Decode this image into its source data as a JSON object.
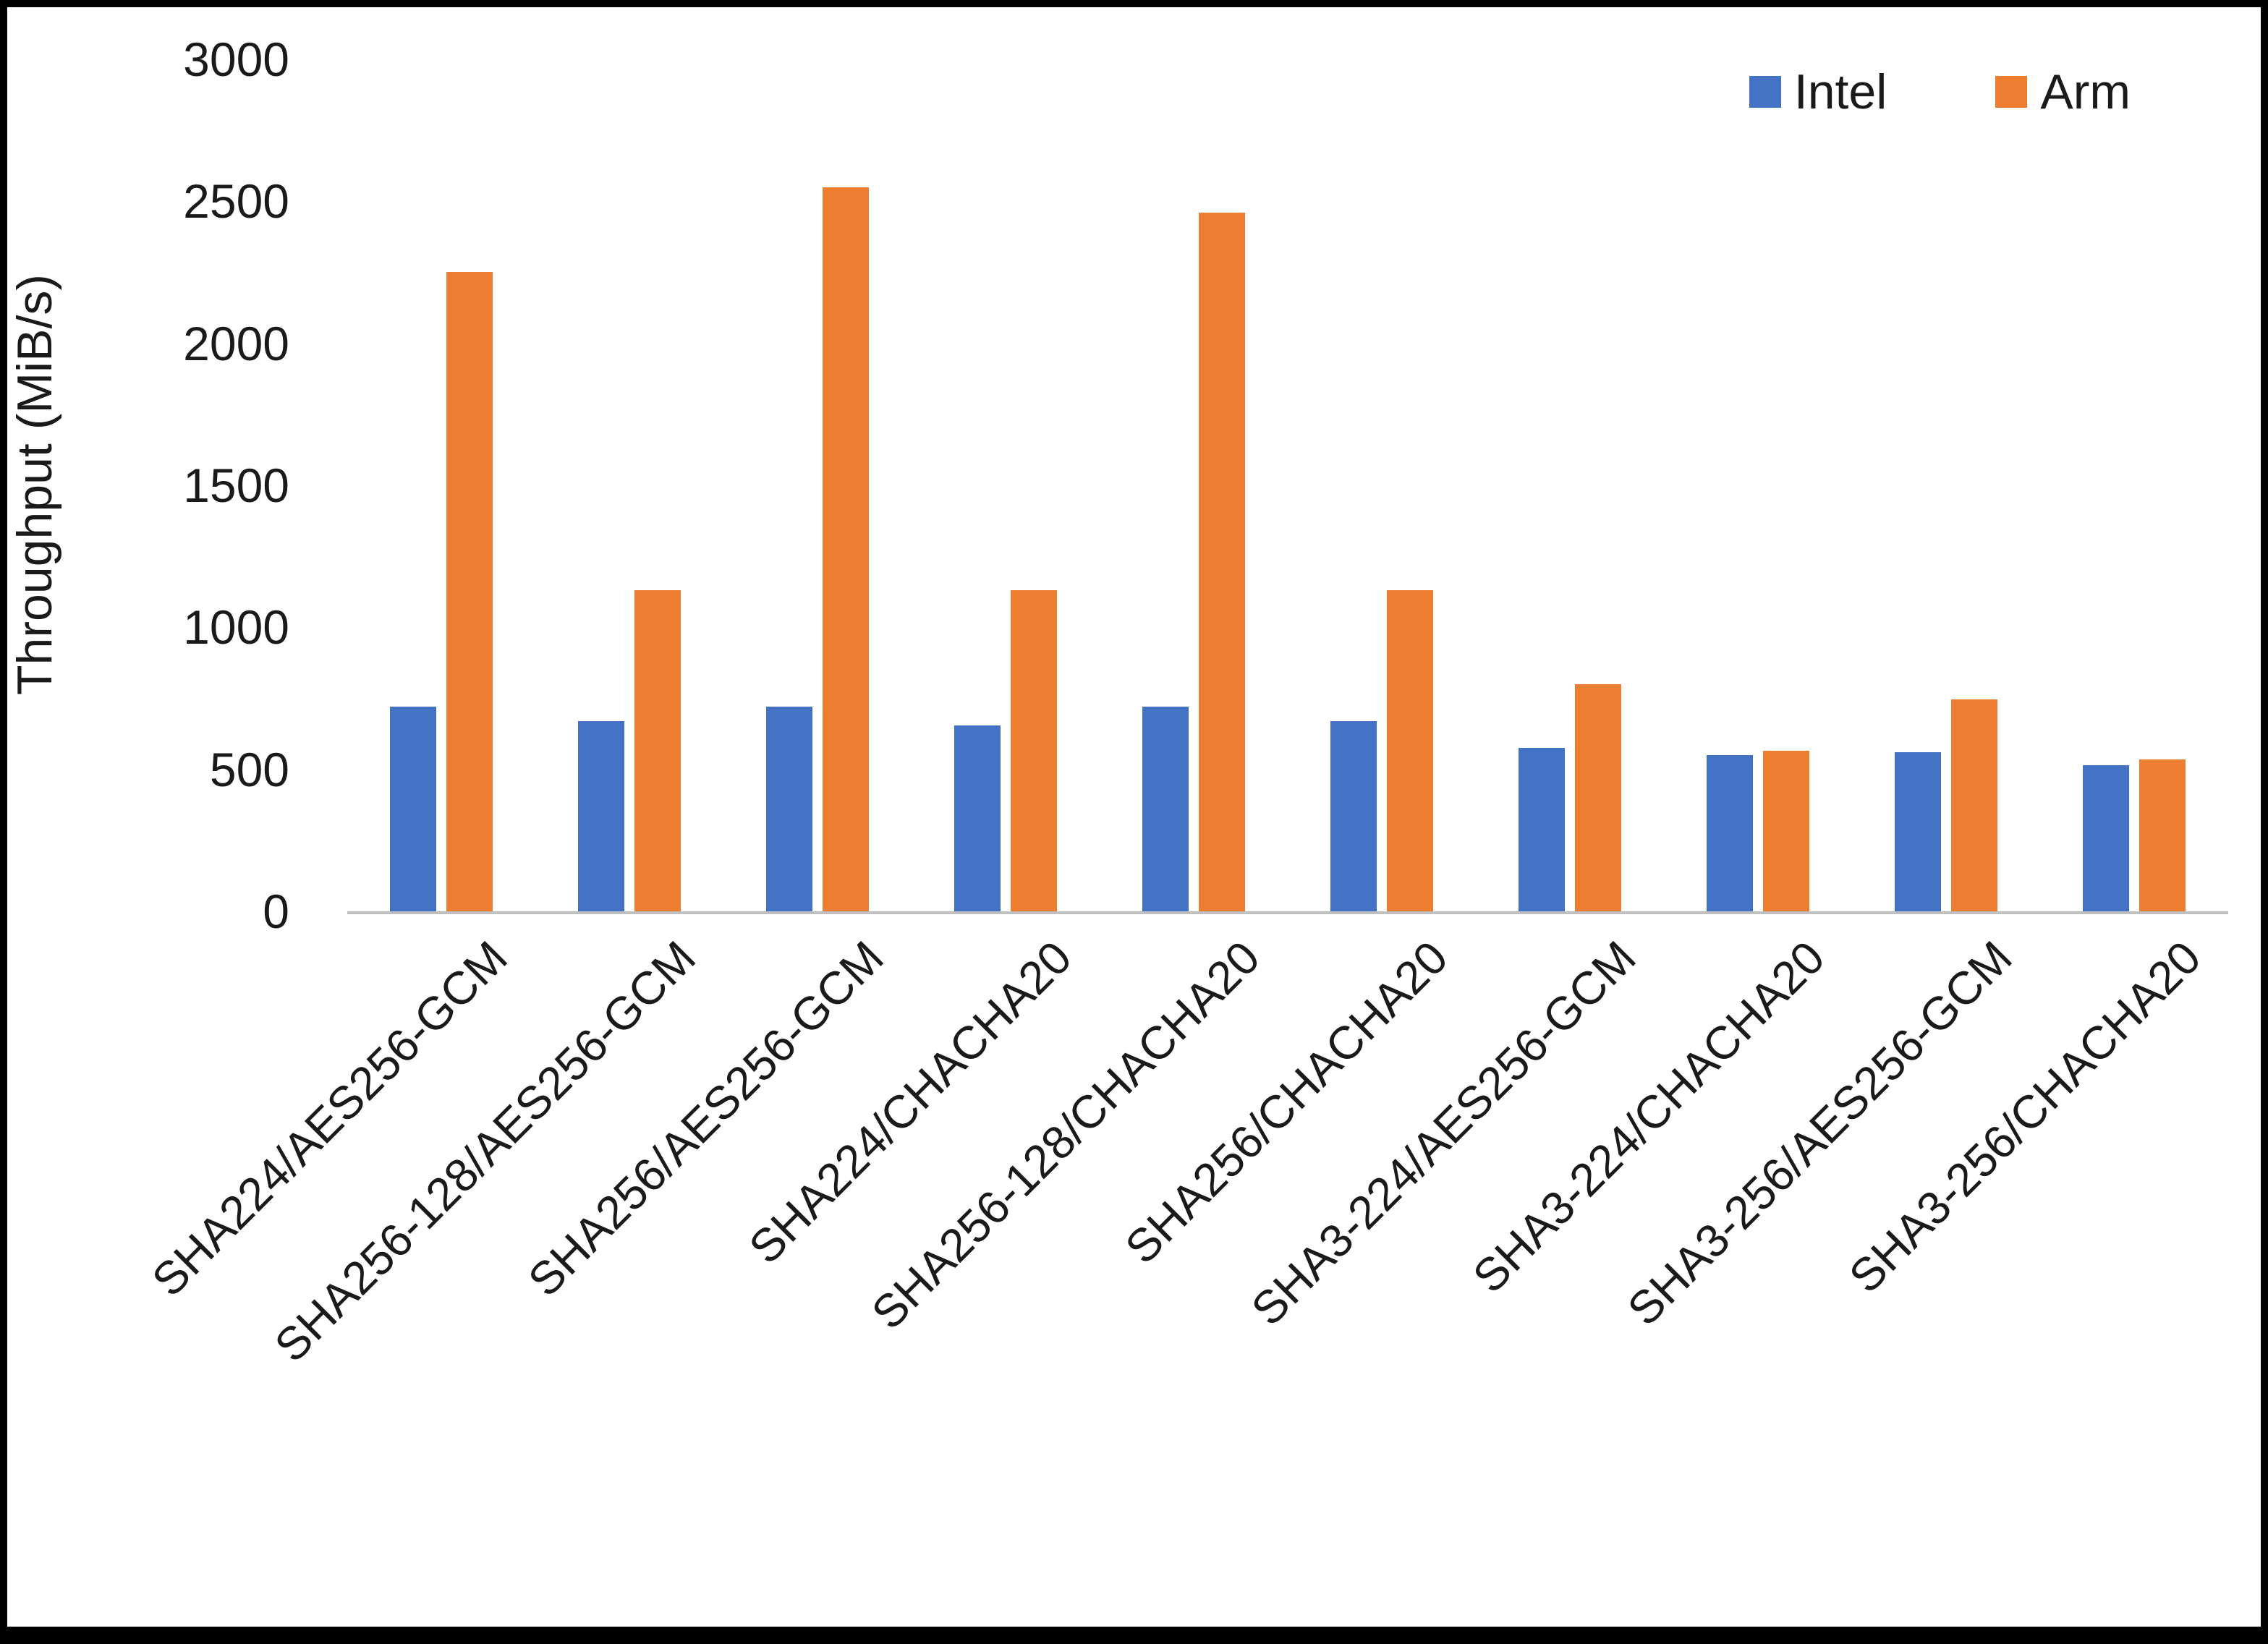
{
  "chart_data": {
    "type": "bar",
    "title": "",
    "xlabel": "",
    "ylabel": "Throughput (MiB/s)",
    "ylim": [
      0,
      3000
    ],
    "yticks": [
      0,
      500,
      1000,
      1500,
      2000,
      2500,
      3000
    ],
    "grid": false,
    "legend_position": "top-right",
    "categories": [
      "SHA224/AES256-GCM",
      "SHA256-128/AES256-GCM",
      "SHA256/AES256-GCM",
      "SHA224/CHACHA20",
      "SHA256-128/CHACHA20",
      "SHA256/CHACHA20",
      "SHA3-224/AES256-GCM",
      "SHA3-224/CHACHA20",
      "SHA3-256/AES256-GCM",
      "SHA3-256/CHACHA20"
    ],
    "series": [
      {
        "name": "Intel",
        "color": "#4472C4",
        "values": [
          720,
          670,
          720,
          655,
          720,
          670,
          575,
          550,
          560,
          515
        ]
      },
      {
        "name": "Arm",
        "color": "#ED7D31",
        "values": [
          2250,
          1130,
          2550,
          1130,
          2460,
          1130,
          800,
          565,
          745,
          535
        ]
      }
    ]
  }
}
